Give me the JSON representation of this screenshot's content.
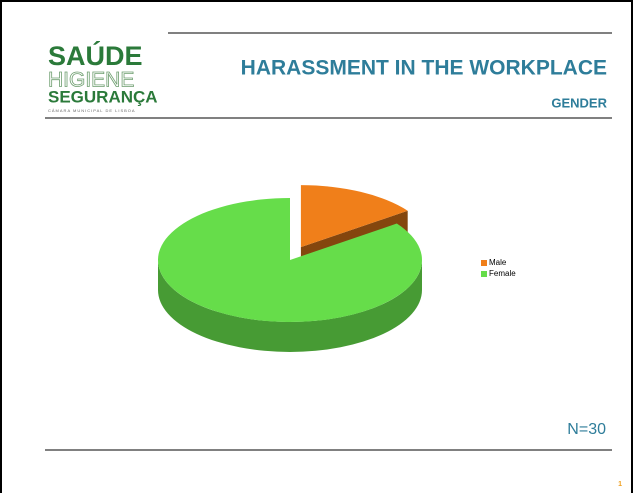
{
  "logo": {
    "line1": "SAÚDE",
    "line2": "HIGIENE",
    "line3": "SEGURANÇA",
    "tagline": "CÂMARA MUNICIPAL DE LISBOA"
  },
  "page_number": "1",
  "chart_data": {
    "type": "pie",
    "title": "HARASSMENT IN THE WORKPLACE",
    "subtitle": "GENDER",
    "categories": [
      "Male",
      "Female"
    ],
    "values": [
      15,
      85
    ],
    "colors": [
      "#f07f1a",
      "#66dd4a"
    ],
    "legend": "right",
    "annotation": "N=30"
  }
}
